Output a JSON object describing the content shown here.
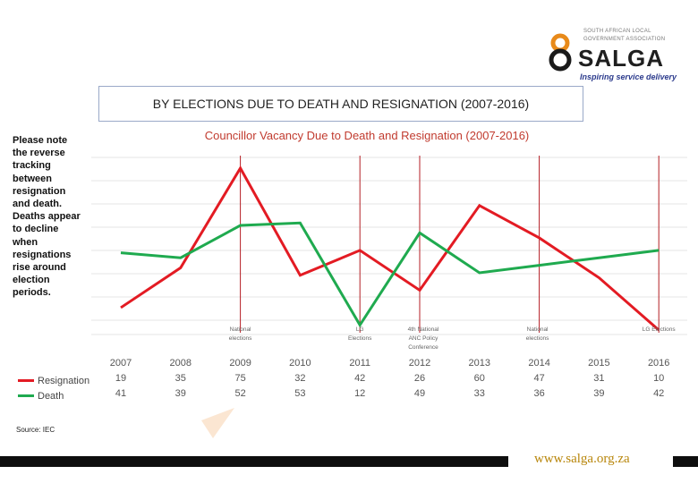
{
  "logo": {
    "line1": "SOUTH AFRICAN LOCAL",
    "line2": "GOVERNMENT ASSOCIATION",
    "name": "SALGA",
    "tagline": "Inspiring service delivery"
  },
  "slide_title": "BY ELECTIONS DUE TO DEATH AND RESIGNATION (2007-2016)",
  "note": "Please note the reverse tracking between resignation and death. Deaths appear to decline when resignations rise around election periods.",
  "source": "Source: IEC",
  "footer_url": "www.salga.org.za",
  "colors": {
    "resignation": "#e31b23",
    "death": "#1faa4f",
    "accent": "#b8860b"
  },
  "chart_data": {
    "type": "line",
    "title": "Councillor Vacancy Due to Death and Resignation (2007-2016)",
    "categories": [
      "2007",
      "2008",
      "2009",
      "2010",
      "2011",
      "2012",
      "2013",
      "2014",
      "2015",
      "2016"
    ],
    "series": [
      {
        "name": "Resignation",
        "color": "#e31b23",
        "values": [
          19,
          35,
          75,
          32,
          42,
          26,
          60,
          47,
          31,
          10
        ]
      },
      {
        "name": "Death",
        "color": "#1faa4f",
        "values": [
          41,
          39,
          52,
          53,
          12,
          49,
          33,
          36,
          39,
          42
        ]
      }
    ],
    "ylim": [
      10,
      75
    ],
    "annotations": [
      {
        "category": "2009",
        "label1": "National",
        "label2": "elections",
        "label3": ""
      },
      {
        "category": "2011",
        "label1": "LG",
        "label2": "Elections",
        "label3": ""
      },
      {
        "category": "2012",
        "label1": "4th National",
        "label2": "ANC Policy",
        "label3": "Conference"
      },
      {
        "category": "2014",
        "label1": "National",
        "label2": "elections",
        "label3": ""
      },
      {
        "category": "2016",
        "label1": "LG Elections",
        "label2": "",
        "label3": ""
      }
    ]
  }
}
